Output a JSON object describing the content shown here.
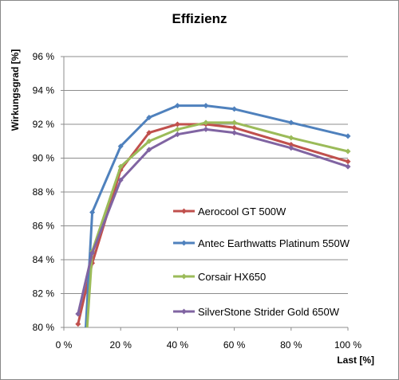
{
  "chart_data": {
    "type": "line",
    "title": "Effizienz",
    "xlabel": "Last [%]",
    "ylabel": "Wirkungsgrad [%]",
    "xlim": [
      0,
      100
    ],
    "ylim": [
      80,
      96
    ],
    "x_ticks": [
      {
        "v": 0,
        "label": "0 %"
      },
      {
        "v": 20,
        "label": "20 %"
      },
      {
        "v": 40,
        "label": "40 %"
      },
      {
        "v": 60,
        "label": "60 %"
      },
      {
        "v": 80,
        "label": "80 %"
      },
      {
        "v": 100,
        "label": "100 %"
      }
    ],
    "y_ticks": [
      {
        "v": 80,
        "label": "80 %"
      },
      {
        "v": 82,
        "label": "82 %"
      },
      {
        "v": 84,
        "label": "84 %"
      },
      {
        "v": 86,
        "label": "86 %"
      },
      {
        "v": 88,
        "label": "88 %"
      },
      {
        "v": 90,
        "label": "90 %"
      },
      {
        "v": 92,
        "label": "92 %"
      },
      {
        "v": 94,
        "label": "94 %"
      },
      {
        "v": 96,
        "label": "96 %"
      }
    ],
    "grid": "horizontal",
    "legend_position": "inside-lower-right",
    "series": [
      {
        "name": "Aerocool GT 500W",
        "color": "#C0504D",
        "points": [
          [
            5,
            80.2
          ],
          [
            10,
            83.8
          ],
          [
            20,
            89.3
          ],
          [
            30,
            91.5
          ],
          [
            40,
            92.0
          ],
          [
            50,
            92.0
          ],
          [
            60,
            91.8
          ],
          [
            80,
            90.8
          ],
          [
            100,
            89.8
          ]
        ]
      },
      {
        "name": "Antec Earthwatts Platinum 550W",
        "color": "#4F81BD",
        "points": [
          [
            7.5,
            79.3
          ],
          [
            10,
            86.8
          ],
          [
            20,
            90.7
          ],
          [
            30,
            92.4
          ],
          [
            40,
            93.1
          ],
          [
            50,
            93.1
          ],
          [
            60,
            92.9
          ],
          [
            80,
            92.1
          ],
          [
            100,
            91.3
          ]
        ]
      },
      {
        "name": "Corsair HX650",
        "color": "#9BBB59",
        "points": [
          [
            8,
            79.5
          ],
          [
            10,
            84.5
          ],
          [
            20,
            89.5
          ],
          [
            30,
            91.0
          ],
          [
            40,
            91.7
          ],
          [
            50,
            92.1
          ],
          [
            60,
            92.1
          ],
          [
            80,
            91.2
          ],
          [
            100,
            90.4
          ]
        ]
      },
      {
        "name": "SilverStone Strider Gold 650W",
        "color": "#8064A2",
        "points": [
          [
            5,
            80.8
          ],
          [
            10,
            84.4
          ],
          [
            20,
            88.7
          ],
          [
            30,
            90.5
          ],
          [
            40,
            91.4
          ],
          [
            50,
            91.7
          ],
          [
            60,
            91.5
          ],
          [
            80,
            90.6
          ],
          [
            100,
            89.5
          ]
        ]
      }
    ]
  }
}
